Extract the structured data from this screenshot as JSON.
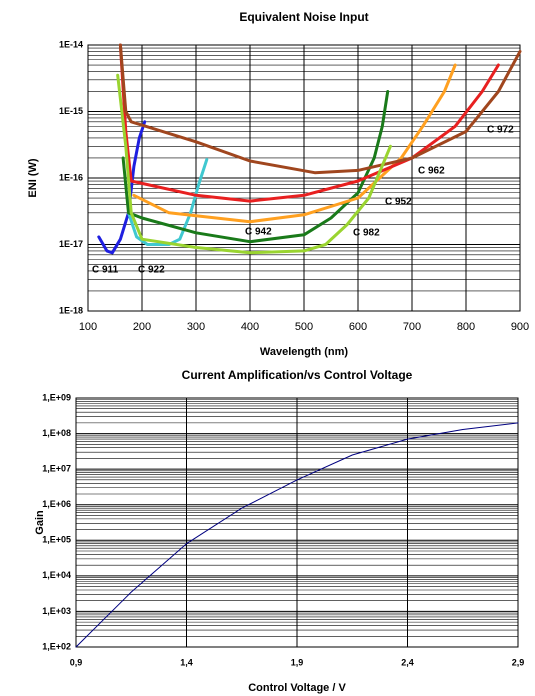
{
  "chart_data": [
    {
      "type": "line",
      "title": "Equivalent Noise Input",
      "xlabel": "Wavelength (nm)",
      "ylabel": "ENI (W)",
      "log_y": true,
      "grid": true,
      "minor_grid": true,
      "xlim": [
        100,
        900
      ],
      "xticks": [
        100,
        200,
        300,
        400,
        500,
        600,
        700,
        800,
        900
      ],
      "ylim": [
        1e-18,
        1e-14
      ],
      "yticks": [
        {
          "value": 1e-18,
          "label": "1E-18"
        },
        {
          "value": 1e-17,
          "label": "1E-17"
        },
        {
          "value": 1e-16,
          "label": "1E-16"
        },
        {
          "value": 1e-15,
          "label": "1E-15"
        },
        {
          "value": 1e-14,
          "label": "1E-14"
        }
      ],
      "series": [
        {
          "name": "C 911",
          "color": "#1f1fe0",
          "x": [
            120,
            135,
            145,
            160,
            175,
            185,
            195,
            205
          ],
          "values": [
            1.3e-17,
            8e-18,
            7.5e-18,
            1.2e-17,
            3e-17,
            1.5e-16,
            4e-16,
            7e-16
          ]
        },
        {
          "name": "C 922",
          "color": "#40c8d0",
          "x": [
            175,
            190,
            210,
            250,
            270,
            290,
            305,
            320
          ],
          "values": [
            3e-17,
            1.3e-17,
            1e-17,
            1e-17,
            1.2e-17,
            3e-17,
            8e-17,
            1.9e-16
          ]
        },
        {
          "name": "C 942",
          "color": "#1a7a1a",
          "x": [
            165,
            175,
            200,
            300,
            400,
            500,
            550,
            600,
            630,
            645,
            655
          ],
          "values": [
            2e-16,
            3e-17,
            2.5e-17,
            1.5e-17,
            1.1e-17,
            1.4e-17,
            2.5e-17,
            6e-17,
            2e-16,
            6e-16,
            2e-15
          ]
        },
        {
          "name": "C 952",
          "color": "#ffa020",
          "x": [
            185,
            250,
            400,
            500,
            600,
            680,
            720,
            760,
            780
          ],
          "values": [
            5.5e-17,
            3e-17,
            2.2e-17,
            2.8e-17,
            5e-17,
            2e-16,
            6e-16,
            2e-15,
            5e-15
          ]
        },
        {
          "name": "C 962",
          "color": "#e82020",
          "x": [
            160,
            170,
            180,
            300,
            400,
            500,
            600,
            700,
            780,
            830,
            860
          ],
          "values": [
            1e-14,
            5e-16,
            9e-17,
            5.5e-17,
            4.5e-17,
            5.5e-17,
            9e-17,
            2e-16,
            6e-16,
            2e-15,
            5e-15
          ]
        },
        {
          "name": "C 972",
          "color": "#a0461e",
          "x": [
            160,
            170,
            180,
            300,
            400,
            520,
            600,
            700,
            800,
            860,
            900
          ],
          "values": [
            1e-14,
            1e-15,
            7e-16,
            3.5e-16,
            1.8e-16,
            1.2e-16,
            1.3e-16,
            2e-16,
            5e-16,
            2e-15,
            8e-15
          ]
        },
        {
          "name": "C 982",
          "color": "#9ad430",
          "x": [
            155,
            170,
            180,
            200,
            300,
            400,
            500,
            540,
            580,
            620,
            660
          ],
          "values": [
            3.5e-15,
            3e-16,
            3e-17,
            1.2e-17,
            9e-18,
            7.5e-18,
            8e-18,
            1e-17,
            2e-17,
            5e-17,
            3e-16
          ]
        }
      ]
    },
    {
      "type": "line",
      "title": "Current Amplification/vs Control Voltage",
      "xlabel": "Control Voltage / V",
      "ylabel": "Gain",
      "log_y": true,
      "grid": true,
      "minor_grid": true,
      "xlim": [
        0.9,
        2.9
      ],
      "xticks": [
        {
          "value": 0.9,
          "label": "0,9"
        },
        {
          "value": 1.4,
          "label": "1,4"
        },
        {
          "value": 1.9,
          "label": "1,9"
        },
        {
          "value": 2.4,
          "label": "2,4"
        },
        {
          "value": 2.9,
          "label": "2,9"
        }
      ],
      "ylim": [
        100,
        1000000000
      ],
      "yticks": [
        {
          "value": 100,
          "label": "1,E+02"
        },
        {
          "value": 1000,
          "label": "1,E+03"
        },
        {
          "value": 10000,
          "label": "1,E+04"
        },
        {
          "value": 100000,
          "label": "1,E+05"
        },
        {
          "value": 1000000,
          "label": "1,E+06"
        },
        {
          "value": 10000000,
          "label": "1,E+07"
        },
        {
          "value": 100000000,
          "label": "1,E+08"
        },
        {
          "value": 1000000000,
          "label": "1,E+09"
        }
      ],
      "series": [
        {
          "name": "Gain",
          "color": "#000080",
          "x": [
            0.9,
            1.15,
            1.4,
            1.65,
            1.9,
            2.15,
            2.4,
            2.65,
            2.9
          ],
          "values": [
            100,
            3500,
            80000,
            800000,
            5000000,
            25000000,
            70000000,
            130000000,
            200000000
          ]
        }
      ]
    }
  ]
}
